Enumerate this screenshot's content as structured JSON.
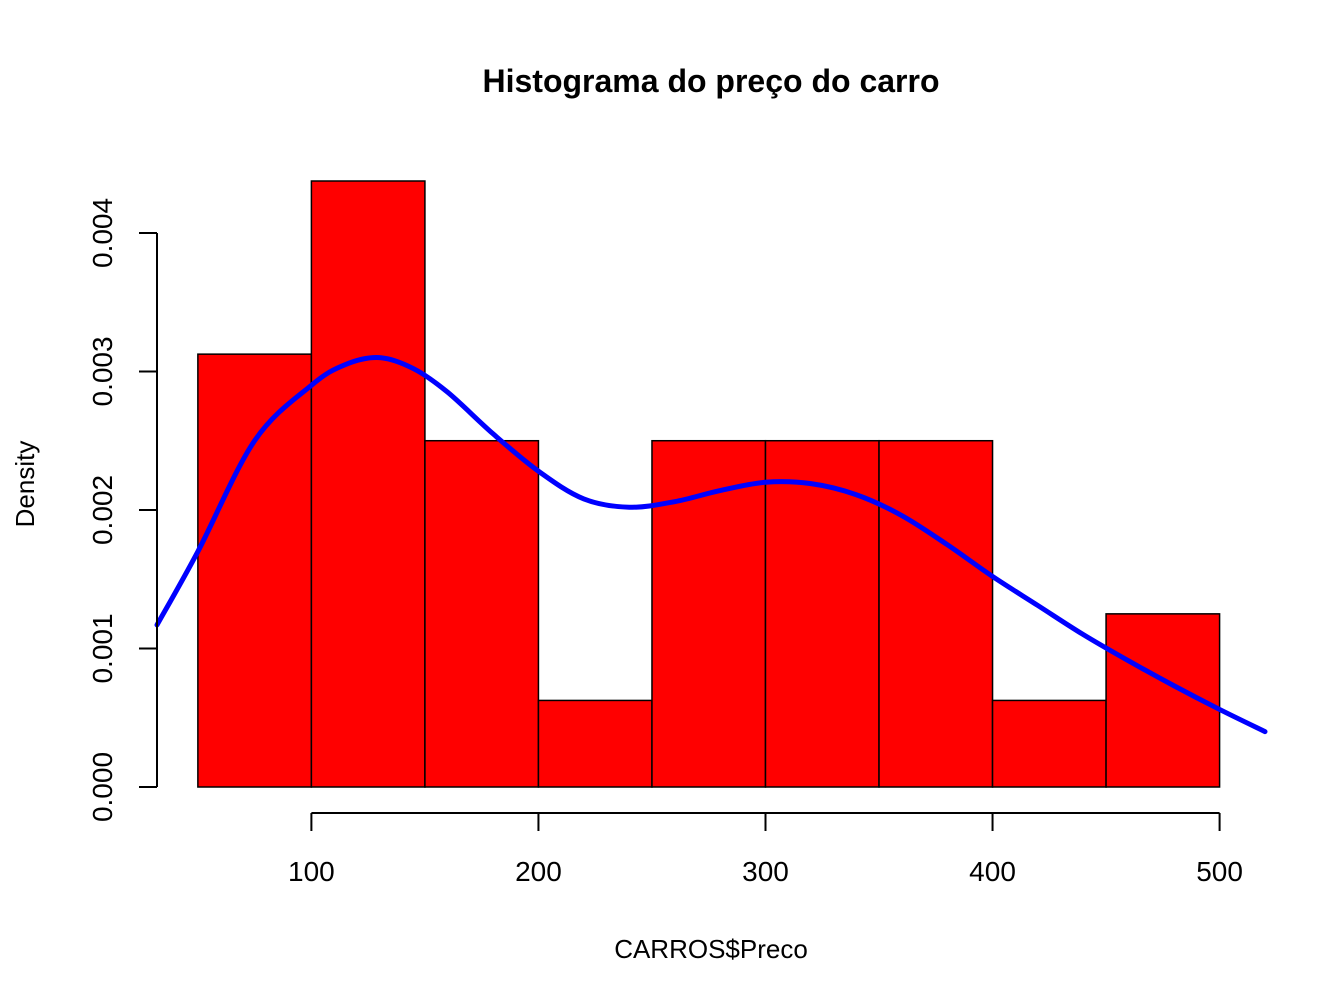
{
  "chart_data": {
    "type": "bar",
    "subtype": "histogram-with-density-curve",
    "title": "Histograma do preço do carro",
    "xlabel": "CARROS$Preco",
    "ylabel": "Density",
    "bins": [
      {
        "start": 50,
        "end": 100,
        "density": 0.003125
      },
      {
        "start": 100,
        "end": 150,
        "density": 0.004375
      },
      {
        "start": 150,
        "end": 200,
        "density": 0.0025
      },
      {
        "start": 200,
        "end": 250,
        "density": 0.000625
      },
      {
        "start": 250,
        "end": 300,
        "density": 0.0025
      },
      {
        "start": 300,
        "end": 350,
        "density": 0.0025
      },
      {
        "start": 350,
        "end": 400,
        "density": 0.0025
      },
      {
        "start": 400,
        "end": 450,
        "density": 0.000625
      },
      {
        "start": 450,
        "end": 500,
        "density": 0.00125
      }
    ],
    "density_curve": {
      "x": [
        32,
        50,
        75,
        100,
        115,
        130,
        145,
        160,
        180,
        200,
        220,
        240,
        260,
        280,
        300,
        320,
        340,
        360,
        380,
        400,
        420,
        440,
        460,
        480,
        500,
        520
      ],
      "y": [
        0.00117,
        0.0017,
        0.0025,
        0.0029,
        0.00305,
        0.0031,
        0.00302,
        0.00285,
        0.00255,
        0.00228,
        0.00208,
        0.00202,
        0.00206,
        0.00214,
        0.0022,
        0.00219,
        0.00211,
        0.00196,
        0.00175,
        0.00152,
        0.00131,
        0.0011,
        0.00091,
        0.00073,
        0.00056,
        0.0004
      ]
    },
    "x_ticks": [
      "100",
      "200",
      "300",
      "400",
      "500"
    ],
    "y_ticks": [
      "0.000",
      "0.001",
      "0.002",
      "0.003",
      "0.004"
    ],
    "xlim": [
      32,
      520
    ],
    "ylim": [
      0,
      0.004375
    ],
    "bar_fill": "#ff0000",
    "bar_border": "#000000",
    "curve_color": "#0000ff",
    "grid": false,
    "legend": "none"
  }
}
